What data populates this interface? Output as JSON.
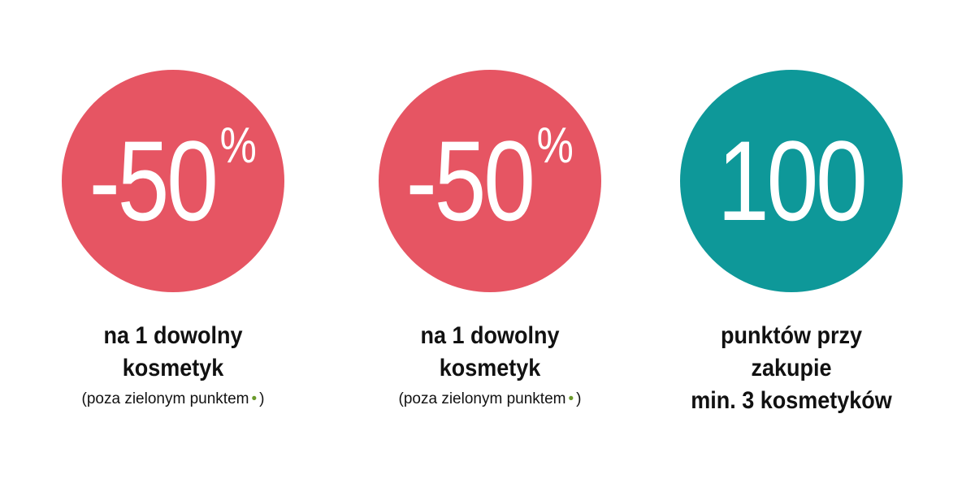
{
  "offers": [
    {
      "color": "#e65563",
      "badge": {
        "value": "-50",
        "unit": "%"
      },
      "caption": [
        "na 1 dowolny",
        "kosmetyk"
      ],
      "note": {
        "before": "(poza zielonym punktem",
        "dot": "•",
        "after": ")"
      }
    },
    {
      "color": "#e65563",
      "badge": {
        "value": "-50",
        "unit": "%"
      },
      "caption": [
        "na 1 dowolny",
        "kosmetyk"
      ],
      "note": {
        "before": "(poza zielonym punktem",
        "dot": "•",
        "after": ")"
      }
    },
    {
      "color": "#0e9899",
      "badge": {
        "value": "100"
      },
      "caption": [
        "punktów przy",
        "zakupie",
        "min. 3 kosmetyków"
      ]
    }
  ]
}
